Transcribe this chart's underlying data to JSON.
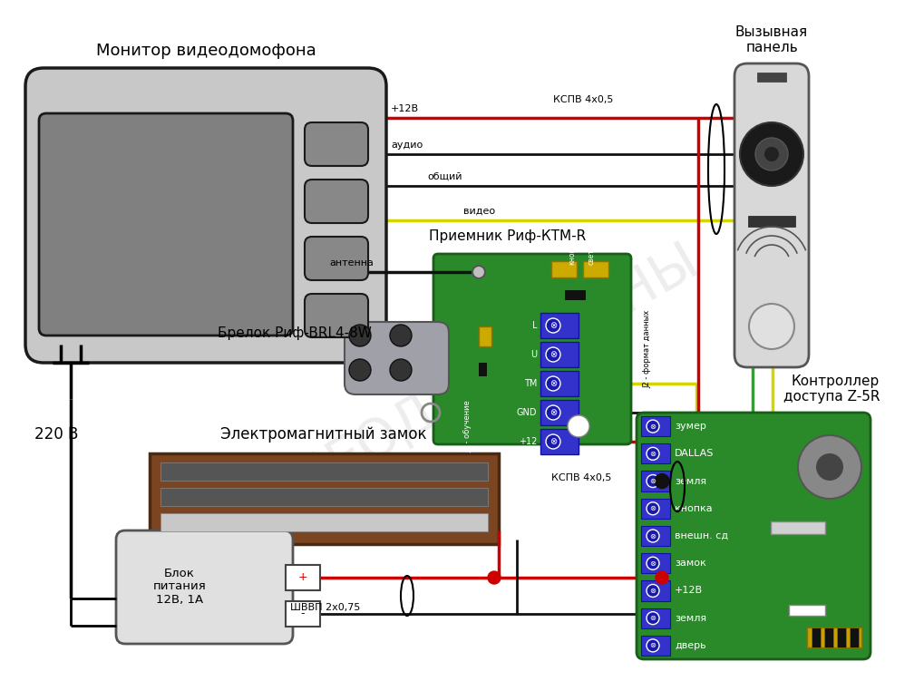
{
  "bg_color": "#ffffff",
  "monitor_label": "Монитор видеодомофона",
  "panel_label": "Вызывная\nпанель",
  "receiver_label": "Приемник Риф-КТМ-R",
  "fob_label": "Брелок Риф-BRL4-8W",
  "lock_label": "Электромагнитный замок",
  "psu_label": "Блок\nпитания\n12В, 1А",
  "controller_label": "Контроллер\nдоступа Z-5R",
  "controller_terminals": [
    "зумер",
    "DALLAS",
    "земля",
    "кнопка",
    "внешн. сд",
    "замок",
    "+12В",
    "земля",
    "дверь"
  ],
  "cable_label_top": "КСПВ 4х0,5",
  "cable_label_bottom": "КСПВ 4х0,5",
  "cable_label_psu": "ШВВП 2х0,75",
  "wire_labels": [
    "+12В",
    "аудио",
    "общий",
    "видео"
  ],
  "antenna_label": "антенна",
  "J2_label": "J2 - формат данных",
  "J1_label": "J1 - обучение",
  "connector_labels": [
    "L",
    "U",
    "TM",
    "GND",
    "+12"
  ],
  "220v_label": "220 В",
  "watermark": "ВИДЕОДОМОФОНЫ"
}
